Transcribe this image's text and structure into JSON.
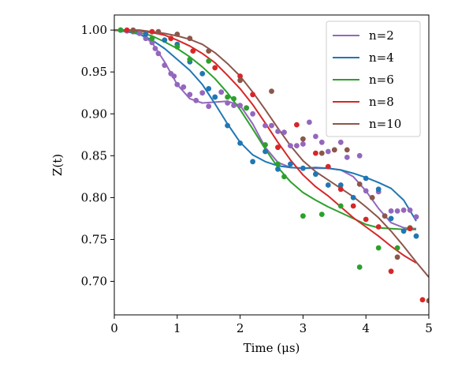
{
  "chart_data": {
    "type": "line",
    "xlabel": "Time (μs)",
    "ylabel": "Z(t)",
    "xlim": [
      0,
      5
    ],
    "ylim": [
      0.66,
      1.018
    ],
    "xticks": [
      0,
      1,
      2,
      3,
      4,
      5
    ],
    "yticks": [
      0.7,
      0.75,
      0.8,
      0.85,
      0.9,
      0.95,
      1.0
    ],
    "grid": false,
    "legend_position": "top-right",
    "series": [
      {
        "name": "n=2",
        "color": "#9467bd",
        "line": [
          [
            0,
            1.0
          ],
          [
            0.2,
            0.999
          ],
          [
            0.4,
            0.996
          ],
          [
            0.6,
            0.985
          ],
          [
            0.8,
            0.962
          ],
          [
            1.0,
            0.935
          ],
          [
            1.2,
            0.918
          ],
          [
            1.4,
            0.913
          ],
          [
            1.6,
            0.914
          ],
          [
            1.8,
            0.915
          ],
          [
            2.0,
            0.91
          ],
          [
            2.2,
            0.888
          ],
          [
            2.4,
            0.86
          ],
          [
            2.6,
            0.842
          ],
          [
            2.8,
            0.836
          ],
          [
            3.0,
            0.835
          ],
          [
            3.2,
            0.835
          ],
          [
            3.4,
            0.835
          ],
          [
            3.6,
            0.833
          ],
          [
            3.8,
            0.825
          ],
          [
            4.0,
            0.808
          ],
          [
            4.2,
            0.787
          ],
          [
            4.4,
            0.77
          ],
          [
            4.6,
            0.764
          ],
          [
            4.8,
            0.763
          ]
        ],
        "points": [
          [
            0.1,
            1.0
          ],
          [
            0.2,
            0.999
          ],
          [
            0.3,
            0.998
          ],
          [
            0.4,
            0.996
          ],
          [
            0.5,
            0.99
          ],
          [
            0.6,
            0.985
          ],
          [
            0.65,
            0.978
          ],
          [
            0.7,
            0.972
          ],
          [
            0.8,
            0.958
          ],
          [
            0.9,
            0.948
          ],
          [
            0.95,
            0.945
          ],
          [
            1.0,
            0.935
          ],
          [
            1.1,
            0.932
          ],
          [
            1.2,
            0.923
          ],
          [
            1.3,
            0.916
          ],
          [
            1.4,
            0.925
          ],
          [
            1.5,
            0.909
          ],
          [
            1.6,
            0.92
          ],
          [
            1.7,
            0.926
          ],
          [
            1.8,
            0.913
          ],
          [
            1.9,
            0.91
          ],
          [
            2.0,
            0.91
          ],
          [
            2.1,
            0.907
          ],
          [
            2.2,
            0.9
          ],
          [
            2.4,
            0.886
          ],
          [
            2.5,
            0.886
          ],
          [
            2.6,
            0.879
          ],
          [
            2.7,
            0.878
          ],
          [
            2.8,
            0.862
          ],
          [
            2.9,
            0.862
          ],
          [
            3.0,
            0.864
          ],
          [
            3.1,
            0.89
          ],
          [
            3.2,
            0.873
          ],
          [
            3.3,
            0.866
          ],
          [
            3.4,
            0.855
          ],
          [
            3.5,
            0.857
          ],
          [
            3.6,
            0.866
          ],
          [
            3.7,
            0.848
          ],
          [
            3.9,
            0.85
          ],
          [
            4.0,
            0.808
          ],
          [
            4.2,
            0.807
          ],
          [
            4.4,
            0.784
          ],
          [
            4.5,
            0.784
          ],
          [
            4.6,
            0.785
          ],
          [
            4.7,
            0.785
          ],
          [
            4.8,
            0.777
          ]
        ]
      },
      {
        "name": "n=4",
        "color": "#1f77b4",
        "line": [
          [
            0,
            1.0
          ],
          [
            0.2,
            0.998
          ],
          [
            0.4,
            0.995
          ],
          [
            0.6,
            0.988
          ],
          [
            0.8,
            0.978
          ],
          [
            1.0,
            0.965
          ],
          [
            1.2,
            0.952
          ],
          [
            1.4,
            0.935
          ],
          [
            1.6,
            0.912
          ],
          [
            1.8,
            0.888
          ],
          [
            2.0,
            0.866
          ],
          [
            2.2,
            0.851
          ],
          [
            2.4,
            0.843
          ],
          [
            2.6,
            0.838
          ],
          [
            2.8,
            0.836
          ],
          [
            3.0,
            0.835
          ],
          [
            3.2,
            0.836
          ],
          [
            3.4,
            0.835
          ],
          [
            3.6,
            0.833
          ],
          [
            3.8,
            0.829
          ],
          [
            4.0,
            0.824
          ],
          [
            4.2,
            0.818
          ],
          [
            4.4,
            0.811
          ],
          [
            4.6,
            0.797
          ],
          [
            4.8,
            0.772
          ]
        ],
        "points": [
          [
            0.1,
            1.0
          ],
          [
            0.3,
            0.999
          ],
          [
            0.5,
            0.995
          ],
          [
            0.8,
            0.988
          ],
          [
            1.0,
            0.983
          ],
          [
            1.2,
            0.962
          ],
          [
            1.4,
            0.948
          ],
          [
            1.5,
            0.93
          ],
          [
            1.6,
            0.92
          ],
          [
            1.8,
            0.886
          ],
          [
            2.0,
            0.865
          ],
          [
            2.2,
            0.843
          ],
          [
            2.4,
            0.855
          ],
          [
            2.6,
            0.834
          ],
          [
            2.8,
            0.84
          ],
          [
            3.0,
            0.835
          ],
          [
            3.2,
            0.828
          ],
          [
            3.4,
            0.815
          ],
          [
            3.6,
            0.815
          ],
          [
            3.8,
            0.8
          ],
          [
            4.0,
            0.823
          ],
          [
            4.2,
            0.81
          ],
          [
            4.4,
            0.775
          ],
          [
            4.6,
            0.76
          ],
          [
            4.8,
            0.754
          ]
        ]
      },
      {
        "name": "n=6",
        "color": "#2ca02c",
        "line": [
          [
            0,
            1.0
          ],
          [
            0.2,
            0.999
          ],
          [
            0.4,
            0.997
          ],
          [
            0.6,
            0.993
          ],
          [
            0.8,
            0.986
          ],
          [
            1.0,
            0.978
          ],
          [
            1.2,
            0.968
          ],
          [
            1.4,
            0.956
          ],
          [
            1.6,
            0.942
          ],
          [
            1.8,
            0.925
          ],
          [
            2.0,
            0.905
          ],
          [
            2.2,
            0.882
          ],
          [
            2.4,
            0.858
          ],
          [
            2.6,
            0.836
          ],
          [
            2.8,
            0.819
          ],
          [
            3.0,
            0.806
          ],
          [
            3.2,
            0.797
          ],
          [
            3.4,
            0.789
          ],
          [
            3.6,
            0.782
          ],
          [
            3.8,
            0.775
          ],
          [
            4.0,
            0.768
          ],
          [
            4.2,
            0.764
          ],
          [
            4.4,
            0.763
          ],
          [
            4.6,
            0.762
          ],
          [
            4.8,
            0.762
          ]
        ],
        "points": [
          [
            0.1,
            1.0
          ],
          [
            0.3,
            0.999
          ],
          [
            0.6,
            0.99
          ],
          [
            1.0,
            0.98
          ],
          [
            1.2,
            0.965
          ],
          [
            1.5,
            0.963
          ],
          [
            1.8,
            0.92
          ],
          [
            1.9,
            0.918
          ],
          [
            2.1,
            0.907
          ],
          [
            2.4,
            0.863
          ],
          [
            2.6,
            0.84
          ],
          [
            2.7,
            0.825
          ],
          [
            3.0,
            0.778
          ],
          [
            3.3,
            0.78
          ],
          [
            3.6,
            0.79
          ],
          [
            3.9,
            0.717
          ],
          [
            4.2,
            0.74
          ],
          [
            4.5,
            0.74
          ],
          [
            4.7,
            0.764
          ]
        ]
      },
      {
        "name": "n=8",
        "color": "#d62728",
        "line": [
          [
            0,
            1.0
          ],
          [
            0.2,
            1.0
          ],
          [
            0.4,
            0.999
          ],
          [
            0.6,
            0.997
          ],
          [
            0.8,
            0.994
          ],
          [
            1.0,
            0.988
          ],
          [
            1.2,
            0.981
          ],
          [
            1.4,
            0.972
          ],
          [
            1.6,
            0.961
          ],
          [
            1.8,
            0.946
          ],
          [
            2.0,
            0.93
          ],
          [
            2.2,
            0.911
          ],
          [
            2.4,
            0.889
          ],
          [
            2.6,
            0.866
          ],
          [
            2.8,
            0.845
          ],
          [
            3.0,
            0.827
          ],
          [
            3.2,
            0.813
          ],
          [
            3.4,
            0.802
          ],
          [
            3.6,
            0.789
          ],
          [
            3.8,
            0.776
          ],
          [
            4.0,
            0.765
          ],
          [
            4.2,
            0.754
          ],
          [
            4.4,
            0.742
          ],
          [
            4.6,
            0.731
          ],
          [
            4.8,
            0.722
          ]
        ],
        "points": [
          [
            0.2,
            1.0
          ],
          [
            0.6,
            0.998
          ],
          [
            0.9,
            0.99
          ],
          [
            1.25,
            0.975
          ],
          [
            1.6,
            0.955
          ],
          [
            2.0,
            0.945
          ],
          [
            2.2,
            0.923
          ],
          [
            2.6,
            0.86
          ],
          [
            2.9,
            0.887
          ],
          [
            3.2,
            0.853
          ],
          [
            3.4,
            0.837
          ],
          [
            3.6,
            0.81
          ],
          [
            3.8,
            0.79
          ],
          [
            4.0,
            0.774
          ],
          [
            4.2,
            0.765
          ],
          [
            4.4,
            0.712
          ],
          [
            4.7,
            0.763
          ],
          [
            4.9,
            0.678
          ]
        ]
      },
      {
        "name": "n=10",
        "color": "#8c564b",
        "line": [
          [
            0,
            1.0
          ],
          [
            0.2,
            1.0
          ],
          [
            0.4,
            1.0
          ],
          [
            0.6,
            0.998
          ],
          [
            0.8,
            0.996
          ],
          [
            1.0,
            0.993
          ],
          [
            1.2,
            0.989
          ],
          [
            1.4,
            0.983
          ],
          [
            1.6,
            0.973
          ],
          [
            1.8,
            0.96
          ],
          [
            2.0,
            0.945
          ],
          [
            2.2,
            0.926
          ],
          [
            2.4,
            0.905
          ],
          [
            2.6,
            0.883
          ],
          [
            2.8,
            0.862
          ],
          [
            3.0,
            0.844
          ],
          [
            3.2,
            0.831
          ],
          [
            3.4,
            0.821
          ],
          [
            3.6,
            0.811
          ],
          [
            3.8,
            0.801
          ],
          [
            4.0,
            0.789
          ],
          [
            4.2,
            0.776
          ],
          [
            4.4,
            0.76
          ],
          [
            4.6,
            0.742
          ],
          [
            4.8,
            0.723
          ],
          [
            5.0,
            0.705
          ]
        ],
        "points": [
          [
            0.3,
            1.0
          ],
          [
            0.7,
            0.998
          ],
          [
            1.0,
            0.995
          ],
          [
            1.2,
            0.99
          ],
          [
            1.5,
            0.975
          ],
          [
            2.0,
            0.94
          ],
          [
            2.5,
            0.927
          ],
          [
            3.0,
            0.87
          ],
          [
            3.3,
            0.853
          ],
          [
            3.5,
            0.857
          ],
          [
            3.7,
            0.857
          ],
          [
            3.9,
            0.816
          ],
          [
            4.1,
            0.8
          ],
          [
            4.3,
            0.778
          ],
          [
            4.5,
            0.729
          ],
          [
            5.0,
            0.677
          ]
        ]
      }
    ]
  }
}
